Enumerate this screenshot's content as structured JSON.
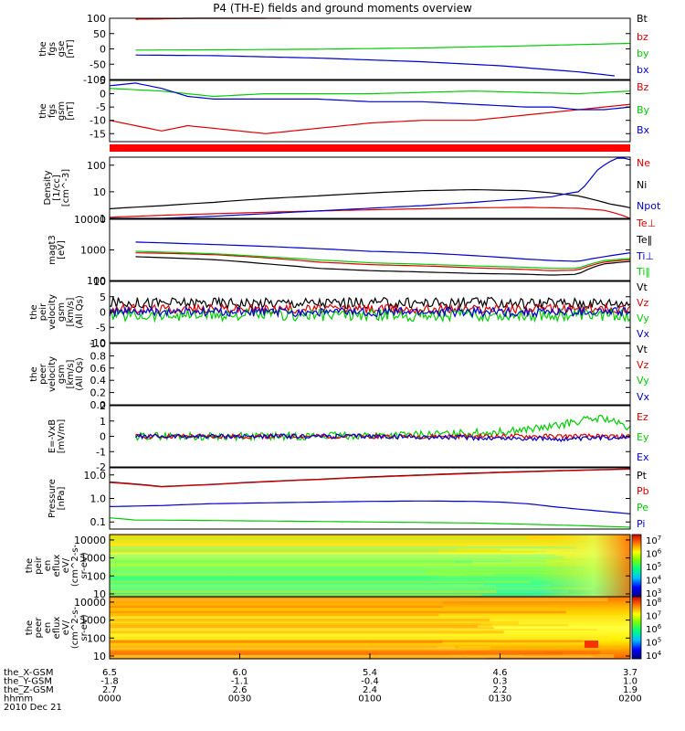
{
  "title": "P4 (TH-E) fields and ground moments overview",
  "colors": {
    "black": "#000000",
    "red": "#dd0000",
    "green": "#00cc00",
    "blue": "#0000cc",
    "bar": "#ff0000"
  },
  "chart_data": [
    {
      "id": "fgs_gse",
      "type": "line",
      "ylabel": [
        "the",
        "fgs",
        "gse",
        "[nT]"
      ],
      "ylim": [
        -100,
        100
      ],
      "ticks": [
        "100",
        "50",
        "0",
        "-50",
        "-100"
      ],
      "tick_values": [
        100,
        50,
        0,
        -50,
        -100
      ],
      "legend": [
        "Bt",
        "bz",
        "by",
        "bx"
      ],
      "series": [
        {
          "name": "Bt",
          "color": "black",
          "x": [
            0.05,
            0.3
          ],
          "y": [
            97,
            105
          ]
        },
        {
          "name": "bz",
          "color": "red",
          "x": [
            0.05,
            0.33
          ],
          "y": [
            97,
            104
          ]
        },
        {
          "name": "by",
          "color": "green",
          "x": [
            0.05,
            0.2,
            0.4,
            0.6,
            0.8,
            1.0
          ],
          "y": [
            -4,
            -3,
            -1,
            3,
            10,
            18
          ]
        },
        {
          "name": "bx",
          "color": "blue",
          "x": [
            0.05,
            0.2,
            0.4,
            0.6,
            0.75,
            0.9,
            0.97
          ],
          "y": [
            -20,
            -22,
            -30,
            -42,
            -55,
            -75,
            -88
          ]
        }
      ]
    },
    {
      "id": "fgs_gsm",
      "type": "line",
      "ylabel": [
        "the",
        "fgs",
        "gsm",
        "[nT]"
      ],
      "ylim": [
        -18,
        5
      ],
      "ticks": [
        "5",
        "0",
        "-5",
        "-10",
        "-15"
      ],
      "tick_values": [
        5,
        0,
        -5,
        -10,
        -15
      ],
      "legend": [
        "Bz",
        "By",
        "Bx"
      ],
      "series": [
        {
          "name": "Bz",
          "color": "red",
          "x": [
            0.0,
            0.05,
            0.1,
            0.15,
            0.2,
            0.3,
            0.4,
            0.5,
            0.6,
            0.7,
            0.75,
            0.8,
            0.85,
            0.9,
            0.95,
            1.0
          ],
          "y": [
            -10,
            -12,
            -14,
            -12,
            -13,
            -15,
            -13,
            -11,
            -10,
            -10,
            -9,
            -8,
            -7,
            -6,
            -5,
            -4
          ]
        },
        {
          "name": "By",
          "color": "green",
          "x": [
            0.0,
            0.1,
            0.2,
            0.3,
            0.5,
            0.7,
            0.9,
            1.0
          ],
          "y": [
            2,
            1,
            -1,
            0,
            0,
            1,
            0,
            1
          ]
        },
        {
          "name": "Bx",
          "color": "blue",
          "x": [
            0.0,
            0.05,
            0.1,
            0.15,
            0.2,
            0.3,
            0.4,
            0.5,
            0.6,
            0.7,
            0.8,
            0.85,
            0.9,
            0.95,
            1.0
          ],
          "y": [
            3,
            4,
            2,
            -1,
            -2,
            -2,
            -2,
            -3,
            -3,
            -4,
            -5,
            -5,
            -6,
            -6,
            -5
          ]
        }
      ]
    },
    {
      "id": "density",
      "type": "line",
      "scale": "log",
      "ylabel": [
        "Density",
        "[1/cc]",
        "[cm^-3]"
      ],
      "ylim": [
        1,
        200
      ],
      "ticks": [
        "100",
        "10",
        "1"
      ],
      "tick_values": [
        100,
        10,
        1
      ],
      "legend": [
        "Ne",
        "Ni",
        "Npot"
      ],
      "series": [
        {
          "name": "Ne",
          "color": "red",
          "x": [
            0.0,
            0.1,
            0.2,
            0.3,
            0.4,
            0.5,
            0.6,
            0.7,
            0.8,
            0.9,
            0.95,
            1.0
          ],
          "y": [
            1.1,
            1.3,
            1.5,
            1.7,
            1.9,
            2.1,
            2.3,
            2.5,
            2.6,
            2.4,
            2.0,
            1.0
          ]
        },
        {
          "name": "Ni",
          "color": "black",
          "x": [
            0.0,
            0.1,
            0.2,
            0.3,
            0.4,
            0.5,
            0.6,
            0.7,
            0.8,
            0.85,
            0.9,
            0.93,
            0.96,
            1.0
          ],
          "y": [
            2.3,
            3,
            4,
            5.5,
            7,
            9,
            11,
            12,
            11,
            9,
            7,
            5,
            3.5,
            2.5
          ]
        },
        {
          "name": "Npot",
          "color": "blue",
          "x": [
            0.0,
            0.1,
            0.2,
            0.3,
            0.4,
            0.5,
            0.6,
            0.7,
            0.8,
            0.85,
            0.9,
            0.92,
            0.95,
            0.98,
            1.0
          ],
          "y": [
            0.9,
            1.0,
            1.2,
            1.5,
            1.9,
            2.4,
            3,
            4,
            5.5,
            6.5,
            10,
            20,
            100,
            200,
            160
          ]
        }
      ]
    },
    {
      "id": "temperature",
      "type": "line",
      "scale": "log",
      "ylabel": [
        "magt3",
        "[eV]"
      ],
      "ylim": [
        100,
        10000
      ],
      "ticks": [
        "10000",
        "1000",
        "100"
      ],
      "tick_values": [
        10000,
        1000,
        100
      ],
      "legend": [
        "Te⊥",
        "Te‖",
        "Ti⊥",
        "Ti‖"
      ],
      "series": [
        {
          "name": "Ti⊥",
          "color": "blue",
          "x": [
            0.05,
            0.1,
            0.2,
            0.3,
            0.4,
            0.5,
            0.6,
            0.7,
            0.8,
            0.85,
            0.9,
            0.95,
            1.0
          ],
          "y": [
            1800,
            1700,
            1500,
            1300,
            1100,
            900,
            800,
            650,
            500,
            450,
            420,
            600,
            800
          ]
        },
        {
          "name": "Te⊥",
          "color": "red",
          "x": [
            0.05,
            0.1,
            0.2,
            0.3,
            0.4,
            0.5,
            0.6,
            0.7,
            0.8,
            0.85,
            0.9,
            0.95,
            1.0
          ],
          "y": [
            800,
            780,
            700,
            550,
            400,
            330,
            300,
            260,
            230,
            210,
            220,
            400,
            480
          ]
        },
        {
          "name": "Ti‖",
          "color": "green",
          "x": [
            0.05,
            0.1,
            0.2,
            0.3,
            0.4,
            0.5,
            0.6,
            0.7,
            0.8,
            0.85,
            0.9,
            0.95,
            1.0
          ],
          "y": [
            900,
            850,
            750,
            600,
            470,
            380,
            340,
            300,
            270,
            250,
            250,
            450,
            520
          ]
        },
        {
          "name": "Te‖",
          "color": "black",
          "x": [
            0.05,
            0.1,
            0.2,
            0.3,
            0.4,
            0.5,
            0.6,
            0.7,
            0.8,
            0.85,
            0.9,
            0.95,
            1.0
          ],
          "y": [
            600,
            560,
            480,
            350,
            250,
            210,
            190,
            170,
            160,
            150,
            160,
            350,
            420
          ]
        }
      ]
    },
    {
      "id": "peir_velocity",
      "type": "line",
      "ylabel": [
        "the",
        "peir",
        "velocity",
        "gsm",
        "[km/s]",
        "(All Qs)"
      ],
      "ylim": [
        -10,
        10
      ],
      "ticks": [
        "10",
        "5",
        "0",
        "-5",
        "-10"
      ],
      "tick_values": [
        10,
        5,
        0,
        -5,
        -10
      ],
      "legend": [
        "Vt",
        "Vz",
        "Vy",
        "Vx"
      ],
      "series": [
        {
          "name": "Vt",
          "color": "black",
          "x": [
            0.0,
            0.2,
            0.4,
            0.6,
            0.8,
            1.0
          ],
          "y": [
            3,
            3,
            3,
            3,
            3,
            3
          ],
          "noise": 1.8
        },
        {
          "name": "Vz",
          "color": "red",
          "x": [
            0.0,
            0.5,
            1.0
          ],
          "y": [
            1,
            1,
            1
          ],
          "noise": 1.5
        },
        {
          "name": "Vy",
          "color": "green",
          "x": [
            0.0,
            0.5,
            1.0
          ],
          "y": [
            -1,
            -1,
            -1
          ],
          "noise": 2.0
        },
        {
          "name": "Vx",
          "color": "blue",
          "x": [
            0.0,
            0.5,
            1.0
          ],
          "y": [
            0,
            0,
            0
          ],
          "noise": 1.5
        }
      ]
    },
    {
      "id": "peer_velocity",
      "type": "line",
      "ylabel": [
        "the",
        "peer",
        "velocity",
        "gsm",
        "[km/s]",
        "(All Qs)"
      ],
      "ylim": [
        0,
        1
      ],
      "ticks": [
        "1.0",
        "0.8",
        "0.6",
        "0.4",
        "0.2",
        "0.0"
      ],
      "tick_values": [
        1.0,
        0.8,
        0.6,
        0.4,
        0.2,
        0.0
      ],
      "legend": [
        "Vt",
        "Vz",
        "Vy",
        "Vx"
      ],
      "series": []
    },
    {
      "id": "efield",
      "type": "line",
      "ylabel": [
        "E=-VxB",
        "[mV/m]"
      ],
      "ylim": [
        -2,
        2
      ],
      "ticks": [
        "2",
        "1",
        "0",
        "-1",
        "-2"
      ],
      "tick_values": [
        2,
        1,
        0,
        -1,
        -2
      ],
      "legend": [
        "Ez",
        "Ey",
        "Ex"
      ],
      "series": [
        {
          "name": "Ey",
          "color": "green",
          "x": [
            0.05,
            0.3,
            0.6,
            0.75,
            0.85,
            0.9,
            0.95,
            1.0
          ],
          "y": [
            0,
            0,
            0.1,
            0.3,
            0.6,
            1.0,
            1.2,
            0.5
          ],
          "noise": 0.25
        },
        {
          "name": "Ez",
          "color": "red",
          "x": [
            0.05,
            0.5,
            1.0
          ],
          "y": [
            0,
            0,
            0
          ],
          "noise": 0.15
        },
        {
          "name": "Ex",
          "color": "blue",
          "x": [
            0.05,
            0.5,
            0.9,
            1.0
          ],
          "y": [
            0,
            0,
            -0.2,
            0
          ],
          "noise": 0.15
        }
      ]
    },
    {
      "id": "pressure",
      "type": "line",
      "scale": "log",
      "ylabel": [
        "Pressure",
        "[nPa]"
      ],
      "ylim": [
        0.05,
        20
      ],
      "ticks": [
        "10.0",
        "1.0",
        "0.1"
      ],
      "tick_values": [
        10,
        1,
        0.1
      ],
      "legend": [
        "Pt",
        "Pb",
        "Pe",
        "Pi"
      ],
      "series": [
        {
          "name": "Pt",
          "color": "black",
          "x": [
            0.0,
            0.1,
            0.2,
            0.4,
            0.6,
            0.8,
            1.0
          ],
          "y": [
            5.0,
            3.2,
            4,
            6.5,
            10,
            14,
            18
          ]
        },
        {
          "name": "Pb",
          "color": "red",
          "x": [
            0.0,
            0.1,
            0.2,
            0.4,
            0.6,
            0.8,
            1.0
          ],
          "y": [
            4.8,
            3.1,
            3.9,
            6.3,
            9.6,
            13.5,
            17.5
          ]
        },
        {
          "name": "Pi",
          "color": "blue",
          "x": [
            0.0,
            0.1,
            0.2,
            0.3,
            0.4,
            0.5,
            0.6,
            0.7,
            0.75,
            0.8,
            0.85,
            0.9,
            0.95,
            1.0
          ],
          "y": [
            0.45,
            0.5,
            0.6,
            0.65,
            0.7,
            0.75,
            0.78,
            0.75,
            0.7,
            0.6,
            0.45,
            0.35,
            0.28,
            0.22
          ]
        },
        {
          "name": "Pe",
          "color": "green",
          "x": [
            0.0,
            0.05,
            0.1,
            0.3,
            0.5,
            0.7,
            0.8,
            0.9,
            1.0
          ],
          "y": [
            0.15,
            0.12,
            0.12,
            0.11,
            0.1,
            0.09,
            0.08,
            0.07,
            0.06
          ]
        }
      ]
    },
    {
      "id": "peir_spectrogram",
      "type": "heatmap",
      "ylabel": [
        "the",
        "peir",
        "en",
        "eflux",
        "eV/",
        "(cm^2-s-",
        "sr-eV)"
      ],
      "ticks": [
        "10000",
        "1000",
        "100",
        "10"
      ],
      "tick_values": [
        10000,
        1000,
        100,
        10
      ],
      "colorbar_ticks": [
        "10^7",
        "10^6",
        "10^5",
        "10^4",
        "10^3"
      ]
    },
    {
      "id": "peer_spectrogram",
      "type": "heatmap",
      "ylabel": [
        "the",
        "peer",
        "en",
        "eflux",
        "eV/",
        "(cm^2-s-",
        "sr-eV)"
      ],
      "ticks": [
        "10000",
        "1000",
        "100",
        "10"
      ],
      "tick_values": [
        10000,
        1000,
        100,
        10
      ],
      "colorbar_ticks": [
        "10^8",
        "10^7",
        "10^6",
        "10^5",
        "10^4"
      ]
    }
  ],
  "xaxis": {
    "row_labels": [
      "the_X-GSM",
      "the_Y-GSM",
      "the_Z-GSM",
      "hhmm",
      "2010 Dec 21"
    ],
    "columns": [
      {
        "values": [
          "6.5",
          "-1.8",
          "2.7",
          "0000"
        ]
      },
      {
        "values": [
          "6.0",
          "-1.1",
          "2.6",
          "0030"
        ]
      },
      {
        "values": [
          "5.4",
          "-0.4",
          "2.4",
          "0100"
        ]
      },
      {
        "values": [
          "4.6",
          "0.3",
          "2.2",
          "0130"
        ]
      },
      {
        "values": [
          "3.7",
          "1.0",
          "1.9",
          "0200"
        ]
      }
    ]
  }
}
